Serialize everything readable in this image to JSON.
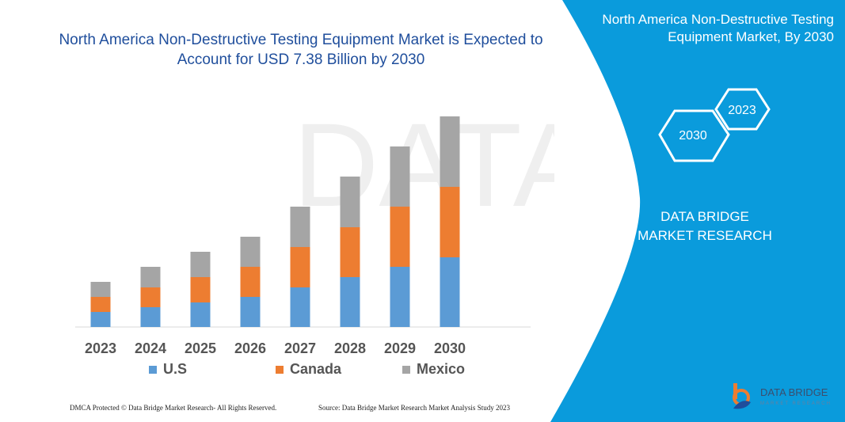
{
  "title": "North America Non-Destructive Testing Equipment Market is Expected to Account for USD 7.38 Billion by 2030",
  "panel": {
    "title": "North America Non-Destructive Testing Equipment Market, By 2030",
    "hex_1": "2023",
    "hex_2": "2030",
    "brand": "DATA BRIDGE MARKET RESEARCH",
    "logo_text": "DATA BRIDGE",
    "logo_sub": "MARKET RESEARCH",
    "color": "#0a9bdc"
  },
  "footer": {
    "left": "DMCA Protected © Data Bridge Market Research- All Rights Reserved.",
    "right": "Source: Data Bridge Market Research  Market Analysis Study 2023"
  },
  "chart_data": {
    "type": "bar",
    "stacked": true,
    "title": "",
    "xlabel": "",
    "ylabel": "",
    "grid": false,
    "legend": "bottom",
    "categories": [
      "2023",
      "2024",
      "2025",
      "2026",
      "2027",
      "2028",
      "2029",
      "2030"
    ],
    "series": [
      {
        "name": "U.S",
        "color": "#5b9bd5",
        "values": [
          19,
          25,
          31,
          38,
          50,
          63,
          76,
          88
        ]
      },
      {
        "name": "Canada",
        "color": "#ed7d31",
        "values": [
          19,
          25,
          32,
          38,
          51,
          63,
          76,
          89
        ]
      },
      {
        "name": "Mexico",
        "color": "#a5a5a5",
        "values": [
          19,
          26,
          32,
          38,
          51,
          64,
          76,
          89
        ]
      }
    ]
  }
}
